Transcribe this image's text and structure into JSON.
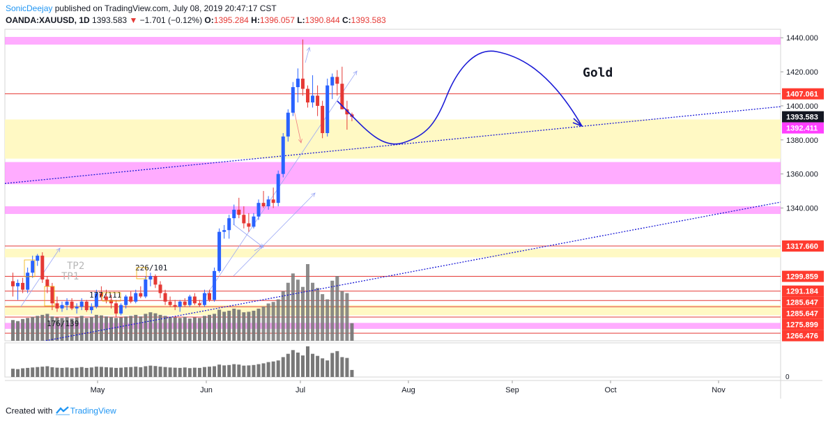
{
  "header": {
    "author": "SonicDeejay",
    "published": "published on TradingView.com, July 08, 2019 20:47:17 CST",
    "symbol": "OANDA:XAUUSD, 1D",
    "last": "1393.583",
    "arrow": "▼",
    "change": "−1.701 (−0.12%)",
    "o_label": "O:",
    "o": "1395.284",
    "h_label": "H:",
    "h": "1396.057",
    "l_label": "L:",
    "l": "1390.844",
    "c_label": "C:",
    "c": "1393.583"
  },
  "footer": {
    "created": "Created with",
    "brand": "TradingView"
  },
  "colors": {
    "up": "#2962ff",
    "down": "#e53935",
    "pink": "#ff80ff",
    "yellow": "#fff9c4",
    "trend": "#1a1ad6",
    "volume": "#787878"
  },
  "chart_data": {
    "type": "candlestick",
    "symbol": "OANDA:XAUUSD",
    "timeframe": "1D",
    "x_labels": [
      "May",
      "Jun",
      "Jul",
      "Aug",
      "Sep",
      "Oct",
      "Nov"
    ],
    "y_ticks": [
      "1440.000",
      "1420.000",
      "1400.000",
      "1380.000",
      "1360.000",
      "1340.000"
    ],
    "ylim": [
      1262,
      1445
    ],
    "price_tags": [
      {
        "value": 1407.061,
        "label": "1407.061",
        "style": "red"
      },
      {
        "value": 1393.583,
        "label": "1393.583",
        "style": "black"
      },
      {
        "value": 1392.411,
        "label": "1392.411",
        "style": "pink"
      },
      {
        "value": 1317.66,
        "label": "1317.660",
        "style": "red"
      },
      {
        "value": 1299.859,
        "label": "1299.859",
        "style": "red"
      },
      {
        "value": 1291.184,
        "label": "1291.184",
        "style": "red"
      },
      {
        "value": 1285.647,
        "label": "1285.647",
        "style": "red"
      },
      {
        "value": 1285.647,
        "label": "1285.647",
        "style": "red"
      },
      {
        "value": 1275.899,
        "label": "1275.899",
        "style": "red"
      },
      {
        "value": 1266.476,
        "label": "1266.476",
        "style": "red"
      }
    ],
    "horizontal_lines": [
      1407.061,
      1317.66,
      1299.859,
      1291.184,
      1285.647,
      1282.0,
      1275.899,
      1266.476
    ],
    "pink_zones": [
      [
        1436,
        1440.5
      ],
      [
        1354,
        1367
      ],
      [
        1336.5,
        1341
      ],
      [
        1269,
        1272.5
      ]
    ],
    "yellow_zones": [
      [
        1369,
        1392
      ],
      [
        1311,
        1316
      ],
      [
        1277,
        1283
      ]
    ],
    "annotations": [
      "Gold",
      "TP2",
      "TP1",
      "226/101",
      "177/111",
      "176/139"
    ],
    "volume_scale_label": "0",
    "candles": [
      {
        "o": 1297,
        "h": 1302,
        "l": 1288,
        "c": 1294
      },
      {
        "o": 1294,
        "h": 1298,
        "l": 1286,
        "c": 1296
      },
      {
        "o": 1296,
        "h": 1299,
        "l": 1290,
        "c": 1292
      },
      {
        "o": 1292,
        "h": 1305,
        "l": 1290,
        "c": 1302
      },
      {
        "o": 1302,
        "h": 1312,
        "l": 1299,
        "c": 1309
      },
      {
        "o": 1309,
        "h": 1313,
        "l": 1306,
        "c": 1312
      },
      {
        "o": 1312,
        "h": 1314,
        "l": 1296,
        "c": 1298
      },
      {
        "o": 1298,
        "h": 1300,
        "l": 1290,
        "c": 1294
      },
      {
        "o": 1294,
        "h": 1296,
        "l": 1280,
        "c": 1284
      },
      {
        "o": 1284,
        "h": 1288,
        "l": 1279,
        "c": 1281
      },
      {
        "o": 1281,
        "h": 1285,
        "l": 1279,
        "c": 1283
      },
      {
        "o": 1283,
        "h": 1287,
        "l": 1280,
        "c": 1285
      },
      {
        "o": 1285,
        "h": 1287,
        "l": 1280,
        "c": 1281
      },
      {
        "o": 1281,
        "h": 1284,
        "l": 1278,
        "c": 1282
      },
      {
        "o": 1282,
        "h": 1287,
        "l": 1280,
        "c": 1285
      },
      {
        "o": 1285,
        "h": 1286,
        "l": 1279,
        "c": 1280
      },
      {
        "o": 1280,
        "h": 1284,
        "l": 1278,
        "c": 1282
      },
      {
        "o": 1282,
        "h": 1292,
        "l": 1281,
        "c": 1290
      },
      {
        "o": 1290,
        "h": 1294,
        "l": 1286,
        "c": 1288
      },
      {
        "o": 1288,
        "h": 1292,
        "l": 1284,
        "c": 1286
      },
      {
        "o": 1286,
        "h": 1289,
        "l": 1281,
        "c": 1284
      },
      {
        "o": 1284,
        "h": 1286,
        "l": 1276,
        "c": 1278
      },
      {
        "o": 1278,
        "h": 1284,
        "l": 1277,
        "c": 1283
      },
      {
        "o": 1283,
        "h": 1289,
        "l": 1281,
        "c": 1288
      },
      {
        "o": 1288,
        "h": 1291,
        "l": 1284,
        "c": 1285
      },
      {
        "o": 1285,
        "h": 1292,
        "l": 1284,
        "c": 1290
      },
      {
        "o": 1290,
        "h": 1294,
        "l": 1287,
        "c": 1288
      },
      {
        "o": 1288,
        "h": 1300,
        "l": 1287,
        "c": 1298
      },
      {
        "o": 1298,
        "h": 1302,
        "l": 1294,
        "c": 1300
      },
      {
        "o": 1300,
        "h": 1301,
        "l": 1293,
        "c": 1295
      },
      {
        "o": 1295,
        "h": 1297,
        "l": 1287,
        "c": 1290
      },
      {
        "o": 1290,
        "h": 1292,
        "l": 1283,
        "c": 1285
      },
      {
        "o": 1285,
        "h": 1288,
        "l": 1282,
        "c": 1283
      },
      {
        "o": 1283,
        "h": 1286,
        "l": 1280,
        "c": 1282
      },
      {
        "o": 1282,
        "h": 1286,
        "l": 1279,
        "c": 1285
      },
      {
        "o": 1285,
        "h": 1287,
        "l": 1282,
        "c": 1283
      },
      {
        "o": 1283,
        "h": 1289,
        "l": 1282,
        "c": 1288
      },
      {
        "o": 1288,
        "h": 1290,
        "l": 1283,
        "c": 1284
      },
      {
        "o": 1284,
        "h": 1286,
        "l": 1282,
        "c": 1283
      },
      {
        "o": 1283,
        "h": 1292,
        "l": 1282,
        "c": 1290
      },
      {
        "o": 1290,
        "h": 1292,
        "l": 1285,
        "c": 1286
      },
      {
        "o": 1286,
        "h": 1305,
        "l": 1285,
        "c": 1303
      },
      {
        "o": 1303,
        "h": 1328,
        "l": 1302,
        "c": 1326
      },
      {
        "o": 1326,
        "h": 1330,
        "l": 1322,
        "c": 1327
      },
      {
        "o": 1327,
        "h": 1336,
        "l": 1322,
        "c": 1334
      },
      {
        "o": 1334,
        "h": 1342,
        "l": 1330,
        "c": 1339
      },
      {
        "o": 1339,
        "h": 1346,
        "l": 1334,
        "c": 1336
      },
      {
        "o": 1336,
        "h": 1341,
        "l": 1328,
        "c": 1331
      },
      {
        "o": 1331,
        "h": 1337,
        "l": 1326,
        "c": 1329
      },
      {
        "o": 1329,
        "h": 1337,
        "l": 1328,
        "c": 1335
      },
      {
        "o": 1335,
        "h": 1345,
        "l": 1333,
        "c": 1343
      },
      {
        "o": 1343,
        "h": 1350,
        "l": 1340,
        "c": 1341
      },
      {
        "o": 1341,
        "h": 1347,
        "l": 1339,
        "c": 1345
      },
      {
        "o": 1345,
        "h": 1352,
        "l": 1340,
        "c": 1343
      },
      {
        "o": 1343,
        "h": 1362,
        "l": 1341,
        "c": 1360
      },
      {
        "o": 1360,
        "h": 1384,
        "l": 1358,
        "c": 1382
      },
      {
        "o": 1382,
        "h": 1398,
        "l": 1379,
        "c": 1396
      },
      {
        "o": 1396,
        "h": 1414,
        "l": 1394,
        "c": 1411
      },
      {
        "o": 1411,
        "h": 1422,
        "l": 1402,
        "c": 1416
      },
      {
        "o": 1416,
        "h": 1439,
        "l": 1406,
        "c": 1410
      },
      {
        "o": 1410,
        "h": 1412,
        "l": 1399,
        "c": 1402
      },
      {
        "o": 1402,
        "h": 1418,
        "l": 1399,
        "c": 1406
      },
      {
        "o": 1406,
        "h": 1412,
        "l": 1394,
        "c": 1400
      },
      {
        "o": 1400,
        "h": 1403,
        "l": 1381,
        "c": 1384
      },
      {
        "o": 1384,
        "h": 1416,
        "l": 1382,
        "c": 1412
      },
      {
        "o": 1412,
        "h": 1419,
        "l": 1404,
        "c": 1417
      },
      {
        "o": 1417,
        "h": 1421,
        "l": 1406,
        "c": 1413
      },
      {
        "o": 1413,
        "h": 1423,
        "l": 1398,
        "c": 1398
      },
      {
        "o": 1398,
        "h": 1403,
        "l": 1386,
        "c": 1395
      },
      {
        "o": 1395,
        "h": 1396,
        "l": 1391,
        "c": 1393.6
      }
    ],
    "volume": [
      40,
      38,
      42,
      44,
      46,
      48,
      50,
      52,
      47,
      45,
      44,
      46,
      43,
      45,
      48,
      44,
      46,
      50,
      49,
      47,
      46,
      44,
      45,
      47,
      48,
      50,
      47,
      52,
      55,
      53,
      50,
      48,
      46,
      45,
      44,
      46,
      43,
      45,
      44,
      48,
      50,
      52,
      60,
      56,
      58,
      62,
      60,
      55,
      56,
      58,
      62,
      66,
      72,
      75,
      80,
      96,
      112,
      130,
      118,
      104,
      148,
      112,
      102,
      90,
      80,
      116,
      125,
      96,
      92,
      34
    ]
  }
}
